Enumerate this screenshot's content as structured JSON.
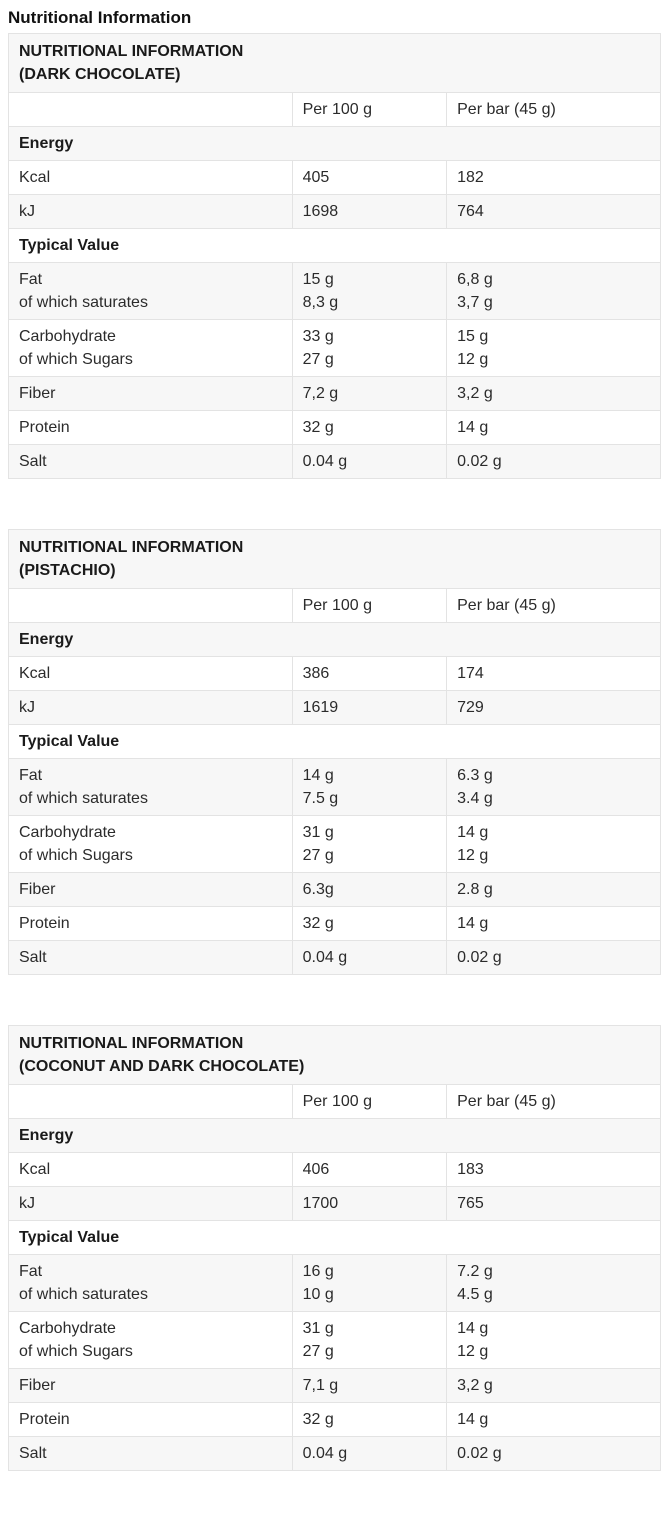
{
  "page": {
    "title": "Nutritional Information"
  },
  "colors": {
    "stripe_row_bg": "#f7f7f7",
    "border": "#e3e3e3",
    "text": "#2b2b2b",
    "heading_text": "#111111"
  },
  "tables": [
    {
      "title_lines": [
        "NUTRITIONAL INFORMATION",
        "(DARK CHOCOLATE)"
      ],
      "col_headers": [
        "",
        "Per 100 g",
        "Per bar (45 g)"
      ],
      "rows": [
        {
          "type": "section",
          "label": "Energy"
        },
        {
          "type": "data",
          "label": [
            "Kcal"
          ],
          "per100": [
            "405"
          ],
          "perbar": [
            "182"
          ]
        },
        {
          "type": "data",
          "label": [
            "kJ"
          ],
          "per100": [
            "1698"
          ],
          "perbar": [
            "764"
          ]
        },
        {
          "type": "section",
          "label": "Typical Value"
        },
        {
          "type": "data",
          "label": [
            "Fat",
            "of which saturates"
          ],
          "per100": [
            "15 g",
            "8,3 g"
          ],
          "perbar": [
            "6,8 g",
            "3,7 g"
          ]
        },
        {
          "type": "data",
          "label": [
            "Carbohydrate",
            "of which Sugars"
          ],
          "per100": [
            "33 g",
            "27 g"
          ],
          "perbar": [
            "15 g",
            "12 g"
          ]
        },
        {
          "type": "data",
          "label": [
            "Fiber"
          ],
          "per100": [
            "7,2 g"
          ],
          "perbar": [
            "3,2 g"
          ]
        },
        {
          "type": "data",
          "label": [
            "Protein"
          ],
          "per100": [
            "32 g"
          ],
          "perbar": [
            "14 g"
          ]
        },
        {
          "type": "data",
          "label": [
            "Salt"
          ],
          "per100": [
            "0.04 g"
          ],
          "perbar": [
            "0.02 g"
          ]
        }
      ]
    },
    {
      "title_lines": [
        "NUTRITIONAL INFORMATION",
        "(PISTACHIO)"
      ],
      "col_headers": [
        "",
        "Per 100 g",
        "Per bar (45 g)"
      ],
      "rows": [
        {
          "type": "section",
          "label": "Energy"
        },
        {
          "type": "data",
          "label": [
            "Kcal"
          ],
          "per100": [
            "386"
          ],
          "perbar": [
            "174"
          ]
        },
        {
          "type": "data",
          "label": [
            "kJ"
          ],
          "per100": [
            "1619"
          ],
          "perbar": [
            "729"
          ]
        },
        {
          "type": "section",
          "label": "Typical Value"
        },
        {
          "type": "data",
          "label": [
            "Fat",
            "of which saturates"
          ],
          "per100": [
            "14 g",
            "7.5 g"
          ],
          "perbar": [
            "6.3 g",
            "3.4 g"
          ]
        },
        {
          "type": "data",
          "label": [
            "Carbohydrate",
            "of which Sugars"
          ],
          "per100": [
            "31 g",
            "27 g"
          ],
          "perbar": [
            "14 g",
            "12 g"
          ]
        },
        {
          "type": "data",
          "label": [
            "Fiber"
          ],
          "per100": [
            "6.3g"
          ],
          "perbar": [
            "2.8 g"
          ]
        },
        {
          "type": "data",
          "label": [
            "Protein"
          ],
          "per100": [
            "32 g"
          ],
          "perbar": [
            "14 g"
          ]
        },
        {
          "type": "data",
          "label": [
            "Salt"
          ],
          "per100": [
            "0.04 g"
          ],
          "perbar": [
            "0.02 g"
          ]
        }
      ]
    },
    {
      "title_lines": [
        "NUTRITIONAL INFORMATION",
        "(COCONUT AND DARK CHOCOLATE)"
      ],
      "col_headers": [
        "",
        "Per 100 g",
        "Per bar (45 g)"
      ],
      "rows": [
        {
          "type": "section",
          "label": "Energy"
        },
        {
          "type": "data",
          "label": [
            "Kcal"
          ],
          "per100": [
            "406"
          ],
          "perbar": [
            "183"
          ]
        },
        {
          "type": "data",
          "label": [
            "kJ"
          ],
          "per100": [
            "1700"
          ],
          "perbar": [
            "765"
          ]
        },
        {
          "type": "section",
          "label": "Typical Value"
        },
        {
          "type": "data",
          "label": [
            "Fat",
            "of which saturates"
          ],
          "per100": [
            "16 g",
            "10 g"
          ],
          "perbar": [
            "7.2 g",
            "4.5 g"
          ]
        },
        {
          "type": "data",
          "label": [
            "Carbohydrate",
            "of which Sugars"
          ],
          "per100": [
            "31 g",
            "27 g"
          ],
          "perbar": [
            "14 g",
            "12 g"
          ]
        },
        {
          "type": "data",
          "label": [
            "Fiber"
          ],
          "per100": [
            "7,1 g"
          ],
          "perbar": [
            "3,2 g"
          ]
        },
        {
          "type": "data",
          "label": [
            "Protein"
          ],
          "per100": [
            "32 g"
          ],
          "perbar": [
            "14 g"
          ]
        },
        {
          "type": "data",
          "label": [
            "Salt"
          ],
          "per100": [
            "0.04 g"
          ],
          "perbar": [
            "0.02 g"
          ]
        }
      ]
    }
  ]
}
